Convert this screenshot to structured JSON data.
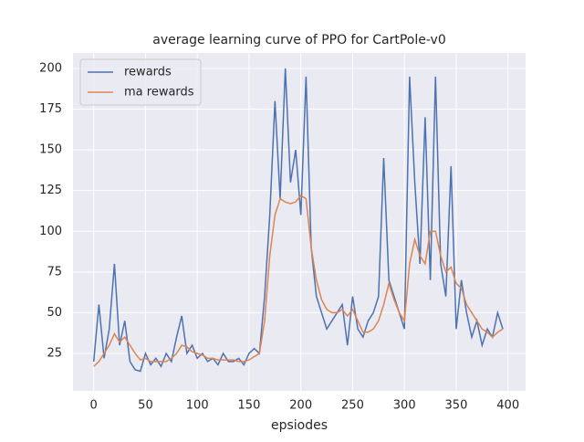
{
  "chart_data": {
    "type": "line",
    "title": "average learning curve of PPO for CartPole-v0",
    "x_label": "epsiodes",
    "x": [
      0,
      5,
      10,
      15,
      20,
      25,
      30,
      35,
      40,
      45,
      50,
      55,
      60,
      65,
      70,
      75,
      80,
      85,
      90,
      95,
      100,
      105,
      110,
      115,
      120,
      125,
      130,
      135,
      140,
      145,
      150,
      155,
      160,
      165,
      170,
      175,
      180,
      185,
      190,
      195,
      200,
      205,
      210,
      215,
      220,
      225,
      230,
      235,
      240,
      245,
      250,
      255,
      260,
      265,
      270,
      275,
      280,
      285,
      290,
      295,
      300,
      305,
      310,
      315,
      320,
      325,
      330,
      335,
      340,
      345,
      350,
      355,
      360,
      365,
      370,
      375,
      380,
      385,
      390,
      395
    ],
    "series": [
      {
        "name": "rewards",
        "color": "#4c72b0",
        "values": [
          20,
          55,
          22,
          40,
          80,
          30,
          45,
          20,
          15,
          14,
          25,
          18,
          22,
          17,
          25,
          20,
          35,
          48,
          25,
          30,
          22,
          25,
          20,
          22,
          18,
          25,
          20,
          20,
          22,
          18,
          25,
          28,
          25,
          60,
          110,
          180,
          120,
          200,
          130,
          150,
          110,
          195,
          90,
          60,
          50,
          40,
          45,
          50,
          55,
          30,
          60,
          40,
          35,
          45,
          50,
          60,
          145,
          70,
          60,
          50,
          40,
          195,
          130,
          80,
          170,
          70,
          195,
          80,
          60,
          140,
          40,
          70,
          50,
          35,
          45,
          30,
          40,
          35,
          50,
          40
        ]
      },
      {
        "name": "ma rewards",
        "color": "#dd8452",
        "values": [
          17,
          20,
          25,
          30,
          37,
          32,
          35,
          30,
          25,
          21,
          22,
          20,
          20,
          20,
          20,
          22,
          25,
          30,
          29,
          26,
          25,
          24,
          22,
          22,
          21,
          21,
          21,
          21,
          20,
          20,
          21,
          23,
          25,
          45,
          85,
          110,
          120,
          118,
          117,
          118,
          122,
          120,
          90,
          70,
          58,
          52,
          50,
          50,
          52,
          48,
          52,
          45,
          38,
          38,
          40,
          45,
          55,
          68,
          58,
          50,
          45,
          80,
          95,
          85,
          80,
          100,
          100,
          85,
          75,
          78,
          68,
          65,
          55,
          50,
          45,
          40,
          38,
          35,
          38,
          40
        ]
      }
    ],
    "xlim": [
      -20,
      417
    ],
    "ylim": [
      2,
      209.5
    ],
    "xticks": [
      0,
      50,
      100,
      150,
      200,
      250,
      300,
      350,
      400
    ],
    "yticks": [
      25,
      50,
      75,
      100,
      125,
      150,
      175,
      200
    ],
    "grid": true,
    "legend": "upper left"
  }
}
